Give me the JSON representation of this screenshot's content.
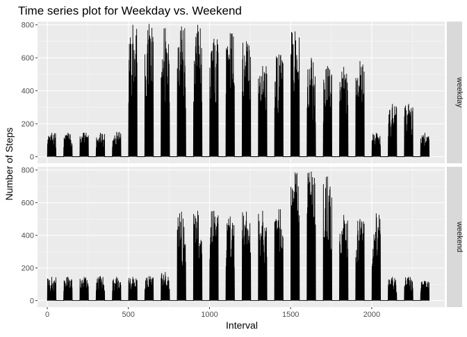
{
  "chart_data": {
    "type": "line",
    "title": "Time series plot for Weekday vs. Weekend",
    "xlabel": "Interval",
    "ylabel": "Number of Steps",
    "xlim": [
      -60,
      2450
    ],
    "ylim": [
      -40,
      820
    ],
    "x_ticks": [
      0,
      500,
      1000,
      1500,
      2000
    ],
    "y_ticks": [
      0,
      200,
      400,
      600,
      800
    ],
    "grid": true,
    "facet": "rows",
    "panels": [
      {
        "name": "weekday",
        "bursts": [
          {
            "x0": 0,
            "x1": 55,
            "peak": 145
          },
          {
            "x0": 100,
            "x1": 155,
            "peak": 145
          },
          {
            "x0": 200,
            "x1": 255,
            "peak": 145
          },
          {
            "x0": 300,
            "x1": 355,
            "peak": 145
          },
          {
            "x0": 400,
            "x1": 455,
            "peak": 150
          },
          {
            "x0": 500,
            "x1": 555,
            "peak": 800
          },
          {
            "x0": 600,
            "x1": 655,
            "peak": 805
          },
          {
            "x0": 700,
            "x1": 755,
            "peak": 780
          },
          {
            "x0": 800,
            "x1": 855,
            "peak": 790
          },
          {
            "x0": 900,
            "x1": 955,
            "peak": 800
          },
          {
            "x0": 1000,
            "x1": 1055,
            "peak": 715
          },
          {
            "x0": 1100,
            "x1": 1155,
            "peak": 750
          },
          {
            "x0": 1200,
            "x1": 1255,
            "peak": 700
          },
          {
            "x0": 1300,
            "x1": 1355,
            "peak": 550
          },
          {
            "x0": 1400,
            "x1": 1455,
            "peak": 620
          },
          {
            "x0": 1500,
            "x1": 1555,
            "peak": 760
          },
          {
            "x0": 1600,
            "x1": 1655,
            "peak": 600
          },
          {
            "x0": 1700,
            "x1": 1755,
            "peak": 550
          },
          {
            "x0": 1800,
            "x1": 1855,
            "peak": 545
          },
          {
            "x0": 1900,
            "x1": 1955,
            "peak": 580
          },
          {
            "x0": 2000,
            "x1": 2055,
            "peak": 145
          },
          {
            "x0": 2100,
            "x1": 2155,
            "peak": 320
          },
          {
            "x0": 2200,
            "x1": 2255,
            "peak": 320
          },
          {
            "x0": 2300,
            "x1": 2355,
            "peak": 145
          }
        ]
      },
      {
        "name": "weekend",
        "bursts": [
          {
            "x0": 0,
            "x1": 55,
            "peak": 145
          },
          {
            "x0": 100,
            "x1": 155,
            "peak": 145
          },
          {
            "x0": 200,
            "x1": 255,
            "peak": 145
          },
          {
            "x0": 300,
            "x1": 355,
            "peak": 150
          },
          {
            "x0": 400,
            "x1": 455,
            "peak": 145
          },
          {
            "x0": 500,
            "x1": 555,
            "peak": 145
          },
          {
            "x0": 600,
            "x1": 655,
            "peak": 150
          },
          {
            "x0": 700,
            "x1": 755,
            "peak": 175
          },
          {
            "x0": 800,
            "x1": 855,
            "peak": 545
          },
          {
            "x0": 900,
            "x1": 955,
            "peak": 550
          },
          {
            "x0": 1000,
            "x1": 1055,
            "peak": 550
          },
          {
            "x0": 1100,
            "x1": 1155,
            "peak": 515
          },
          {
            "x0": 1200,
            "x1": 1255,
            "peak": 545
          },
          {
            "x0": 1300,
            "x1": 1355,
            "peak": 550
          },
          {
            "x0": 1400,
            "x1": 1455,
            "peak": 560
          },
          {
            "x0": 1500,
            "x1": 1555,
            "peak": 785
          },
          {
            "x0": 1600,
            "x1": 1655,
            "peak": 790
          },
          {
            "x0": 1700,
            "x1": 1755,
            "peak": 760
          },
          {
            "x0": 1800,
            "x1": 1855,
            "peak": 525
          },
          {
            "x0": 1900,
            "x1": 1955,
            "peak": 500
          },
          {
            "x0": 2000,
            "x1": 2055,
            "peak": 535
          },
          {
            "x0": 2100,
            "x1": 2155,
            "peak": 145
          },
          {
            "x0": 2200,
            "x1": 2255,
            "peak": 145
          },
          {
            "x0": 2300,
            "x1": 2355,
            "peak": 120
          }
        ]
      }
    ]
  }
}
